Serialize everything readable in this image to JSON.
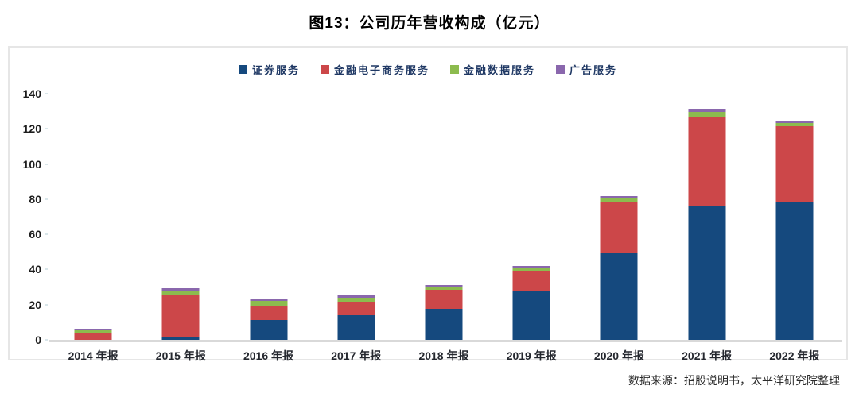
{
  "title": "图13：公司历年营收构成（亿元）",
  "footer": {
    "source": "数据来源：招股说明书，太平洋研究院整理"
  },
  "colors": {
    "securities_blue": "#15497E",
    "ecommerce_red": "#CC4749",
    "data_green": "#8CBB4E",
    "ads_purple": "#8A67AD",
    "axis_line_gray": "#D9D9D9",
    "frame_gray": "#E6E6E6",
    "legend_text_navy": "#1F3864"
  },
  "chart_data": {
    "type": "bar",
    "stacked": true,
    "title": "图13：公司历年营收构成（亿元）",
    "xlabel": "",
    "ylabel": "",
    "ylim": [
      0,
      140
    ],
    "yticks": [
      0,
      20,
      40,
      60,
      80,
      100,
      120,
      140
    ],
    "grid": false,
    "legend_position": "top",
    "categories": [
      "2014 年报",
      "2015 年报",
      "2016 年报",
      "2017 年报",
      "2018 年报",
      "2019 年报",
      "2020 年报",
      "2021 年报",
      "2022 年报"
    ],
    "series": [
      {
        "name": "证券服务",
        "key": "securities-services",
        "color": "#15497E",
        "values": [
          0,
          1.4,
          11.4,
          13.9,
          17.5,
          27.6,
          49.4,
          76.5,
          78.3
        ]
      },
      {
        "name": "金融电子商务服务",
        "key": "ecommerce-services",
        "color": "#CC4749",
        "values": [
          3.7,
          24.0,
          8.1,
          7.8,
          10.8,
          11.7,
          28.6,
          50.4,
          43.4
        ]
      },
      {
        "name": "金融数据服务",
        "key": "data-services",
        "color": "#8CBB4E",
        "values": [
          1.6,
          2.6,
          2.7,
          2.4,
          1.8,
          1.7,
          2.7,
          2.9,
          1.8
        ]
      },
      {
        "name": "广告服务",
        "key": "ads-services",
        "color": "#8A67AD",
        "values": [
          1.1,
          1.5,
          1.2,
          1.2,
          1.0,
          1.2,
          1.2,
          1.5,
          1.2
        ]
      }
    ]
  }
}
